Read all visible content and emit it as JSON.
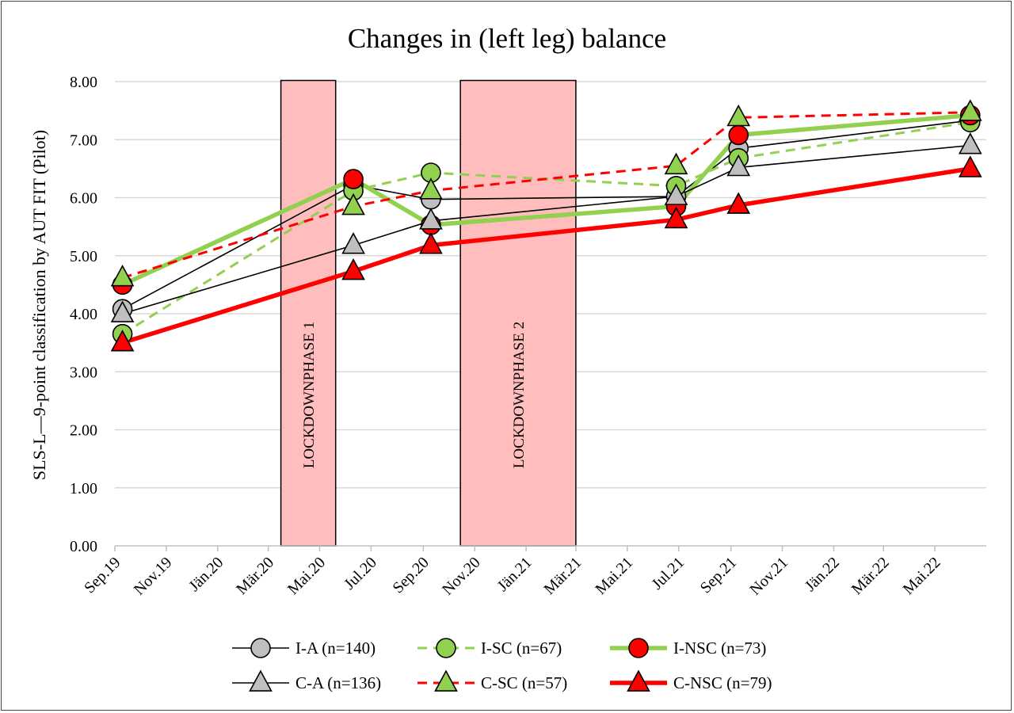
{
  "chart_data": {
    "type": "line",
    "title": "Changes in (left leg) balance",
    "xlabel": "",
    "ylabel": "SLS-L—9-point classification by AUT FIT (Pilot)",
    "ylim": [
      0,
      8
    ],
    "yticks": [
      "0.00",
      "1.00",
      "2.00",
      "3.00",
      "4.00",
      "5.00",
      "6.00",
      "7.00",
      "8.00"
    ],
    "x_range": [
      "2019-09-01",
      "2022-07-01"
    ],
    "xticks": [
      {
        "label": "Sep.19",
        "date": "2019-09-01"
      },
      {
        "label": "Nov.19",
        "date": "2019-11-01"
      },
      {
        "label": "Jän.20",
        "date": "2020-01-01"
      },
      {
        "label": "Mär.20",
        "date": "2020-03-01"
      },
      {
        "label": "Mai.20",
        "date": "2020-05-01"
      },
      {
        "label": "Jul.20",
        "date": "2020-07-01"
      },
      {
        "label": "Sep.20",
        "date": "2020-09-01"
      },
      {
        "label": "Nov.20",
        "date": "2020-11-01"
      },
      {
        "label": "Jän.21",
        "date": "2021-01-01"
      },
      {
        "label": "Mär.21",
        "date": "2021-03-01"
      },
      {
        "label": "Mai.21",
        "date": "2021-05-01"
      },
      {
        "label": "Jul.21",
        "date": "2021-07-01"
      },
      {
        "label": "Sep.21",
        "date": "2021-09-01"
      },
      {
        "label": "Nov.21",
        "date": "2021-11-01"
      },
      {
        "label": "Jän.22",
        "date": "2022-01-01"
      },
      {
        "label": "Mär.22",
        "date": "2022-03-01"
      },
      {
        "label": "Mai.22",
        "date": "2022-05-01"
      }
    ],
    "grid": true,
    "legend_position": "bottom",
    "shaded_regions": [
      {
        "label": "LOCKDOWNPHASE 1",
        "start": "2020-03-16",
        "end": "2020-05-20",
        "color": "#ffbdbd"
      },
      {
        "label": "LOCKDOWNPHASE 2",
        "start": "2020-10-15",
        "end": "2021-03-01",
        "color": "#ffbdbd"
      }
    ],
    "series": [
      {
        "name": "I-A (n=140)",
        "group": "I",
        "marker": "circle",
        "line_color": "#000000",
        "line_style": "solid",
        "marker_fill": "#bfbfbf",
        "points": [
          [
            "2019-09-10",
            4.08
          ],
          [
            "2020-06-10",
            6.22
          ],
          [
            "2020-09-10",
            5.97
          ],
          [
            "2021-06-28",
            6.02
          ],
          [
            "2021-09-10",
            6.85
          ],
          [
            "2022-06-12",
            7.33
          ]
        ]
      },
      {
        "name": "I-SC (n=67)",
        "group": "I",
        "marker": "circle",
        "line_color": "#92d050",
        "line_style": "dashed",
        "marker_fill": "#92d050",
        "points": [
          [
            "2019-09-10",
            3.65
          ],
          [
            "2020-06-10",
            6.12
          ],
          [
            "2020-09-10",
            6.43
          ],
          [
            "2021-06-28",
            6.2
          ],
          [
            "2021-09-10",
            6.68
          ],
          [
            "2022-06-12",
            7.3
          ]
        ]
      },
      {
        "name": "I-NSC (n=73)",
        "group": "I",
        "marker": "circle",
        "line_color": "#92d050",
        "line_style": "thick",
        "marker_fill": "#ff0000",
        "points": [
          [
            "2019-09-10",
            4.5
          ],
          [
            "2020-06-10",
            6.32
          ],
          [
            "2020-09-10",
            5.53
          ],
          [
            "2021-06-28",
            5.85
          ],
          [
            "2021-09-10",
            7.08
          ],
          [
            "2022-06-12",
            7.42
          ]
        ]
      },
      {
        "name": "C-A (n=136)",
        "group": "C",
        "marker": "triangle",
        "line_color": "#000000",
        "line_style": "solid",
        "marker_fill": "#bfbfbf",
        "points": [
          [
            "2019-09-10",
            4.0
          ],
          [
            "2020-06-10",
            5.18
          ],
          [
            "2020-09-10",
            5.6
          ],
          [
            "2021-06-28",
            6.02
          ],
          [
            "2021-09-10",
            6.52
          ],
          [
            "2022-06-12",
            6.9
          ]
        ]
      },
      {
        "name": "C-SC (n=57)",
        "group": "C",
        "marker": "triangle",
        "line_color": "#ff0000",
        "line_style": "dashed",
        "marker_fill": "#92d050",
        "points": [
          [
            "2019-09-10",
            4.62
          ],
          [
            "2020-06-10",
            5.85
          ],
          [
            "2020-09-10",
            6.12
          ],
          [
            "2021-06-28",
            6.55
          ],
          [
            "2021-09-10",
            7.38
          ],
          [
            "2022-06-12",
            7.47
          ]
        ]
      },
      {
        "name": "C-NSC (n=79)",
        "group": "C",
        "marker": "triangle",
        "line_color": "#ff0000",
        "line_style": "thick",
        "marker_fill": "#ff0000",
        "points": [
          [
            "2019-09-10",
            3.5
          ],
          [
            "2020-06-10",
            4.73
          ],
          [
            "2020-09-10",
            5.18
          ],
          [
            "2021-06-28",
            5.62
          ],
          [
            "2021-09-10",
            5.87
          ],
          [
            "2022-06-12",
            6.5
          ]
        ]
      }
    ]
  }
}
